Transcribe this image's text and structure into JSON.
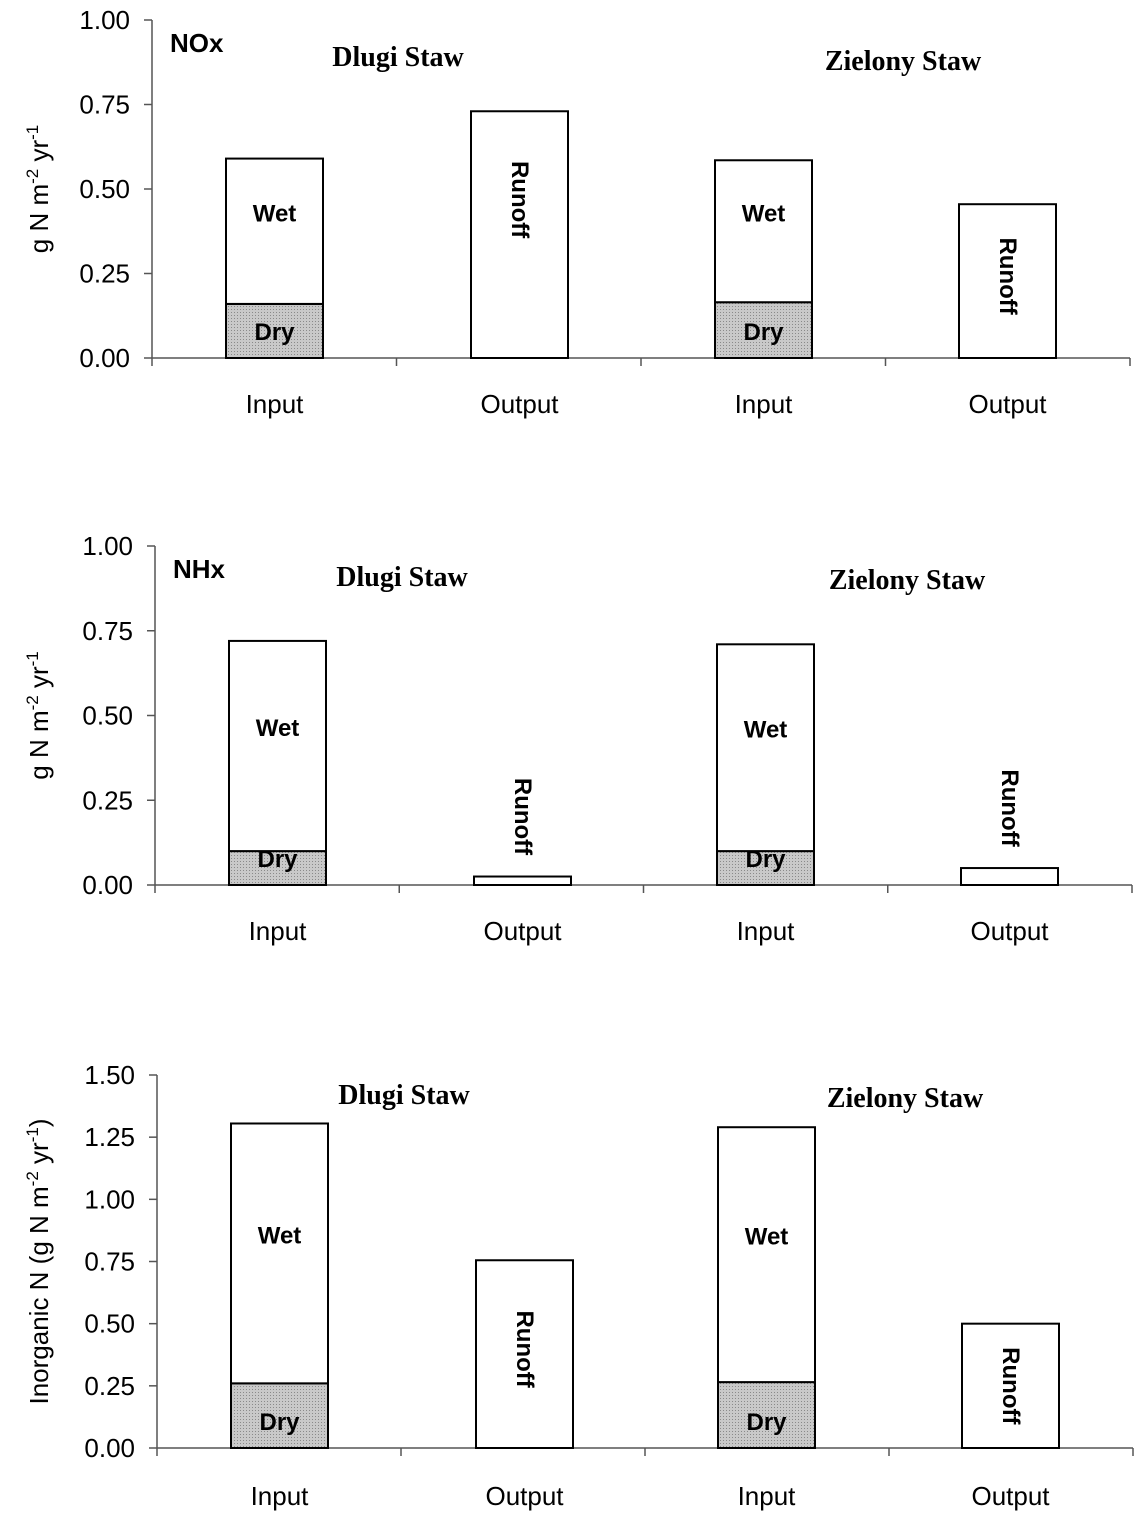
{
  "colors": {
    "dry": "#c4c4c4",
    "wet": "#ffffff",
    "runoff": "#ffffff",
    "stroke": "#000000"
  },
  "chart_data": [
    {
      "type": "bar",
      "stacked": true,
      "panel_label": "NOx",
      "ylabel": "g N m-2 yr-1",
      "ylim": [
        0,
        1.0
      ],
      "yticks": [
        "0.00",
        "0.25",
        "0.50",
        "0.75",
        "1.00"
      ],
      "categories": [
        "Input",
        "Output",
        "Input",
        "Output"
      ],
      "sites": [
        "Dlugi Staw",
        "Zielony Staw"
      ],
      "series": [
        {
          "name": "Dry",
          "values": [
            0.16,
            0,
            0.165,
            0
          ]
        },
        {
          "name": "Wet",
          "values": [
            0.43,
            0,
            0.42,
            0
          ]
        },
        {
          "name": "Runoff",
          "values": [
            0,
            0.73,
            0,
            0.455
          ]
        }
      ]
    },
    {
      "type": "bar",
      "stacked": true,
      "panel_label": "NHx",
      "ylabel": "g N m-2 yr-1",
      "ylim": [
        0,
        1.0
      ],
      "yticks": [
        "0.00",
        "0.25",
        "0.50",
        "0.75",
        "1.00"
      ],
      "categories": [
        "Input",
        "Output",
        "Input",
        "Output"
      ],
      "sites": [
        "Dlugi Staw",
        "Zielony Staw"
      ],
      "series": [
        {
          "name": "Dry",
          "values": [
            0.1,
            0,
            0.1,
            0
          ]
        },
        {
          "name": "Wet",
          "values": [
            0.62,
            0,
            0.61,
            0
          ]
        },
        {
          "name": "Runoff",
          "values": [
            0,
            0.025,
            0,
            0.05
          ]
        }
      ]
    },
    {
      "type": "bar",
      "stacked": true,
      "panel_label": "",
      "ylabel": "Inorganic N (g N m-2 yr-1)",
      "ylim": [
        0,
        1.5
      ],
      "yticks": [
        "0.00",
        "0.25",
        "0.50",
        "0.75",
        "1.00",
        "1.25",
        "1.50"
      ],
      "categories": [
        "Input",
        "Output",
        "Input",
        "Output"
      ],
      "sites": [
        "Dlugi Staw",
        "Zielony Staw"
      ],
      "series": [
        {
          "name": "Dry",
          "values": [
            0.26,
            0,
            0.265,
            0
          ]
        },
        {
          "name": "Wet",
          "values": [
            1.045,
            0,
            1.025,
            0
          ]
        },
        {
          "name": "Runoff",
          "values": [
            0,
            0.755,
            0,
            0.5
          ]
        }
      ]
    }
  ]
}
